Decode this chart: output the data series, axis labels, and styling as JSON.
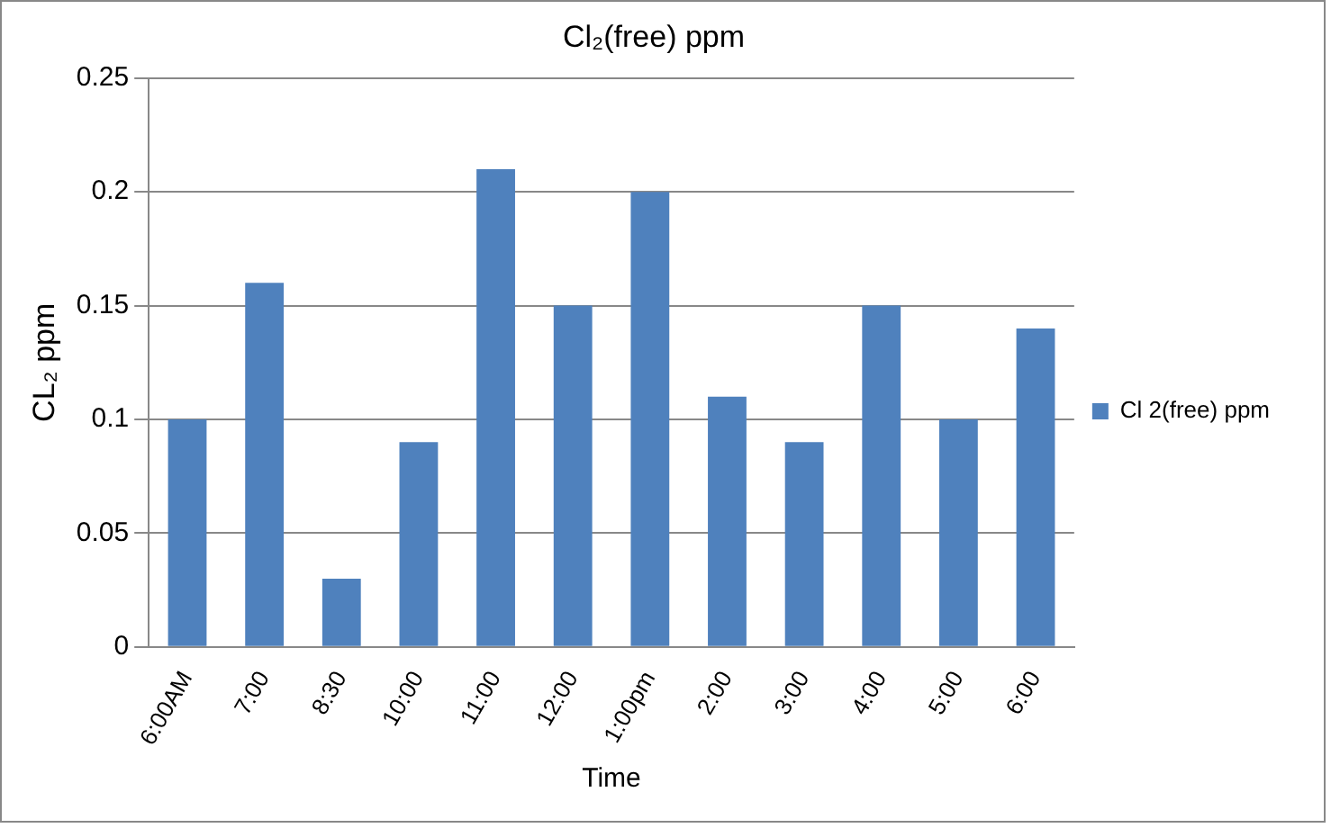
{
  "chart_data": {
    "type": "bar",
    "title": "Cl₂(free) ppm",
    "xlabel": "Time",
    "ylabel": "CL₂ ppm",
    "categories": [
      "6:00AM",
      "7:00",
      "8:30",
      "10:00",
      "11:00",
      "12:00",
      "1:00pm",
      "2:00",
      "3:00",
      "4:00",
      "5:00",
      "6:00"
    ],
    "series": [
      {
        "name": "Cl 2(free) ppm",
        "color": "#4f81bd",
        "values": [
          0.1,
          0.16,
          0.03,
          0.09,
          0.21,
          0.15,
          0.2,
          0.11,
          0.09,
          0.15,
          0.1,
          0.14
        ]
      }
    ],
    "ylim": [
      0,
      0.25
    ],
    "yticks": [
      0,
      0.05,
      0.1,
      0.15,
      0.2,
      0.25
    ],
    "grid": "y",
    "legend": "right"
  }
}
